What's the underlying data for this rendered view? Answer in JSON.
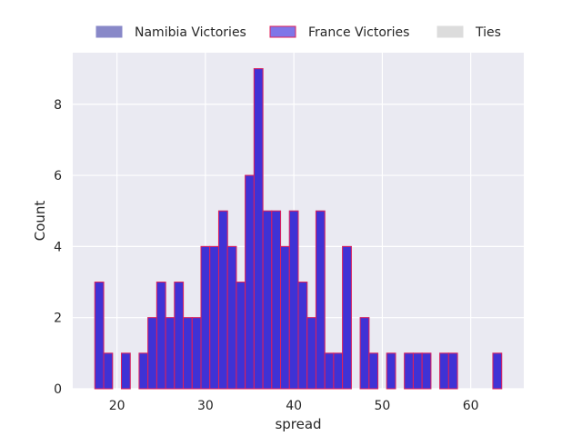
{
  "chart_data": {
    "type": "bar",
    "title": "",
    "xlabel": "spread",
    "ylabel": "Count",
    "xlim": [
      15,
      66
    ],
    "ylim": [
      0,
      9.45
    ],
    "xticks": [
      20,
      30,
      40,
      50,
      60
    ],
    "yticks": [
      0,
      2,
      4,
      6,
      8
    ],
    "grid": true,
    "legend_placement": "top-center",
    "bin_width": 1,
    "series": [
      {
        "name": "Namibia Victories",
        "color": "#8888c8",
        "edge_color": "#8888c8",
        "bins": [
          {
            "x": 17.5,
            "count": 3
          },
          {
            "x": 18.5,
            "count": 1
          },
          {
            "x": 20.5,
            "count": 1
          },
          {
            "x": 22.5,
            "count": 1
          },
          {
            "x": 23.5,
            "count": 2
          },
          {
            "x": 24.5,
            "count": 3
          },
          {
            "x": 25.5,
            "count": 2
          },
          {
            "x": 26.5,
            "count": 3
          },
          {
            "x": 27.5,
            "count": 2
          },
          {
            "x": 28.5,
            "count": 2
          },
          {
            "x": 29.5,
            "count": 4
          },
          {
            "x": 30.5,
            "count": 4
          },
          {
            "x": 31.5,
            "count": 5
          },
          {
            "x": 32.5,
            "count": 4
          },
          {
            "x": 33.5,
            "count": 3
          },
          {
            "x": 34.5,
            "count": 6
          },
          {
            "x": 35.5,
            "count": 9
          },
          {
            "x": 36.5,
            "count": 5
          },
          {
            "x": 37.5,
            "count": 5
          },
          {
            "x": 38.5,
            "count": 4
          },
          {
            "x": 39.5,
            "count": 5
          },
          {
            "x": 40.5,
            "count": 3
          },
          {
            "x": 41.5,
            "count": 2
          },
          {
            "x": 42.5,
            "count": 5
          },
          {
            "x": 43.5,
            "count": 1
          },
          {
            "x": 44.5,
            "count": 1
          },
          {
            "x": 45.5,
            "count": 4
          },
          {
            "x": 47.5,
            "count": 2
          },
          {
            "x": 48.5,
            "count": 1
          },
          {
            "x": 50.5,
            "count": 1
          },
          {
            "x": 52.5,
            "count": 1
          },
          {
            "x": 53.5,
            "count": 1
          },
          {
            "x": 54.5,
            "count": 1
          },
          {
            "x": 56.5,
            "count": 1
          },
          {
            "x": 57.5,
            "count": 1
          },
          {
            "x": 62.5,
            "count": 1
          }
        ]
      },
      {
        "name": "France Victories",
        "color": "#2a1ad8",
        "edge_color": "#e0205a",
        "bins": [
          {
            "x": 17.5,
            "count": 3
          },
          {
            "x": 18.5,
            "count": 1
          },
          {
            "x": 20.5,
            "count": 1
          },
          {
            "x": 22.5,
            "count": 1
          },
          {
            "x": 23.5,
            "count": 2
          },
          {
            "x": 24.5,
            "count": 3
          },
          {
            "x": 25.5,
            "count": 2
          },
          {
            "x": 26.5,
            "count": 3
          },
          {
            "x": 27.5,
            "count": 2
          },
          {
            "x": 28.5,
            "count": 2
          },
          {
            "x": 29.5,
            "count": 4
          },
          {
            "x": 30.5,
            "count": 4
          },
          {
            "x": 31.5,
            "count": 5
          },
          {
            "x": 32.5,
            "count": 4
          },
          {
            "x": 33.5,
            "count": 3
          },
          {
            "x": 34.5,
            "count": 6
          },
          {
            "x": 35.5,
            "count": 9
          },
          {
            "x": 36.5,
            "count": 5
          },
          {
            "x": 37.5,
            "count": 5
          },
          {
            "x": 38.5,
            "count": 4
          },
          {
            "x": 39.5,
            "count": 5
          },
          {
            "x": 40.5,
            "count": 3
          },
          {
            "x": 41.5,
            "count": 2
          },
          {
            "x": 42.5,
            "count": 5
          },
          {
            "x": 43.5,
            "count": 1
          },
          {
            "x": 44.5,
            "count": 1
          },
          {
            "x": 45.5,
            "count": 4
          },
          {
            "x": 47.5,
            "count": 2
          },
          {
            "x": 48.5,
            "count": 1
          },
          {
            "x": 50.5,
            "count": 1
          },
          {
            "x": 52.5,
            "count": 1
          },
          {
            "x": 53.5,
            "count": 1
          },
          {
            "x": 54.5,
            "count": 1
          },
          {
            "x": 56.5,
            "count": 1
          },
          {
            "x": 57.5,
            "count": 1
          },
          {
            "x": 62.5,
            "count": 1
          }
        ]
      },
      {
        "name": "Ties",
        "color": "#dcdcdc",
        "edge_color": "#dcdcdc",
        "bins": []
      }
    ]
  }
}
